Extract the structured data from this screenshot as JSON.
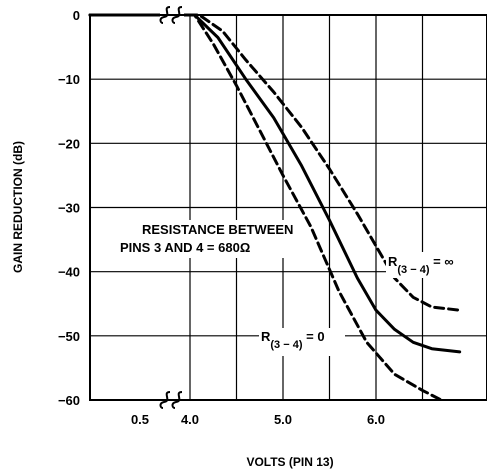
{
  "chart_data": {
    "type": "line",
    "xlabel": "VOLTS (PIN 13)",
    "ylabel": "GAIN REDUCTION (dB)",
    "xlim": [
      0.5,
      6.9
    ],
    "ylim": [
      -60,
      0
    ],
    "x_ticks": [
      {
        "value": 0.5,
        "label": "0.5"
      },
      {
        "value": 4.0,
        "label": "4.0"
      },
      {
        "value": 5.0,
        "label": "5.0"
      },
      {
        "value": 6.0,
        "label": "6.0"
      }
    ],
    "y_ticks": [
      {
        "value": 0,
        "label": "0"
      },
      {
        "value": -10,
        "label": "−10"
      },
      {
        "value": -20,
        "label": "−20"
      },
      {
        "value": -30,
        "label": "−30"
      },
      {
        "value": -40,
        "label": "−40"
      },
      {
        "value": -50,
        "label": "−50"
      },
      {
        "value": -60,
        "label": "−60"
      }
    ],
    "axis_break_between": [
      0.5,
      4.0
    ],
    "grid": true,
    "series": [
      {
        "name": "R(3−4) = ∞",
        "style": "dashed",
        "points": [
          [
            0.5,
            0
          ],
          [
            3.9,
            0
          ],
          [
            4.1,
            0
          ],
          [
            4.35,
            -2.5
          ],
          [
            4.6,
            -7
          ],
          [
            4.9,
            -12
          ],
          [
            5.2,
            -17.5
          ],
          [
            5.5,
            -24
          ],
          [
            5.8,
            -31
          ],
          [
            6.0,
            -36
          ],
          [
            6.2,
            -41
          ],
          [
            6.4,
            -44
          ],
          [
            6.6,
            -45.5
          ],
          [
            6.9,
            -46
          ]
        ]
      },
      {
        "name": "R(3−4) = 680Ω",
        "style": "solid",
        "points": [
          [
            0.5,
            0
          ],
          [
            3.9,
            0
          ],
          [
            4.05,
            0
          ],
          [
            4.3,
            -3.5
          ],
          [
            4.6,
            -10
          ],
          [
            4.9,
            -16
          ],
          [
            5.2,
            -23.5
          ],
          [
            5.5,
            -32
          ],
          [
            5.8,
            -41
          ],
          [
            6.0,
            -46
          ],
          [
            6.2,
            -49
          ],
          [
            6.4,
            -51
          ],
          [
            6.6,
            -52
          ],
          [
            6.9,
            -52.5
          ]
        ]
      },
      {
        "name": "R(3−4) = 0",
        "style": "dashed",
        "points": [
          [
            0.5,
            0
          ],
          [
            3.9,
            0
          ],
          [
            4.05,
            0
          ],
          [
            4.25,
            -4.5
          ],
          [
            4.5,
            -11
          ],
          [
            4.75,
            -18
          ],
          [
            5.0,
            -25
          ],
          [
            5.3,
            -33
          ],
          [
            5.6,
            -43
          ],
          [
            5.9,
            -51
          ],
          [
            6.2,
            -56
          ],
          [
            6.5,
            -58.5
          ],
          [
            6.7,
            -60
          ]
        ]
      }
    ],
    "annotations": [
      {
        "text": "RESISTANCE BETWEEN"
      },
      {
        "text": "PINS 3 AND 4 = 680Ω"
      },
      {
        "text_main": "R",
        "text_sub": "(3 − 4)",
        "text_tail": " = ∞"
      },
      {
        "text_main": "R",
        "text_sub": "(3 − 4)",
        "text_tail": " = 0"
      }
    ]
  }
}
